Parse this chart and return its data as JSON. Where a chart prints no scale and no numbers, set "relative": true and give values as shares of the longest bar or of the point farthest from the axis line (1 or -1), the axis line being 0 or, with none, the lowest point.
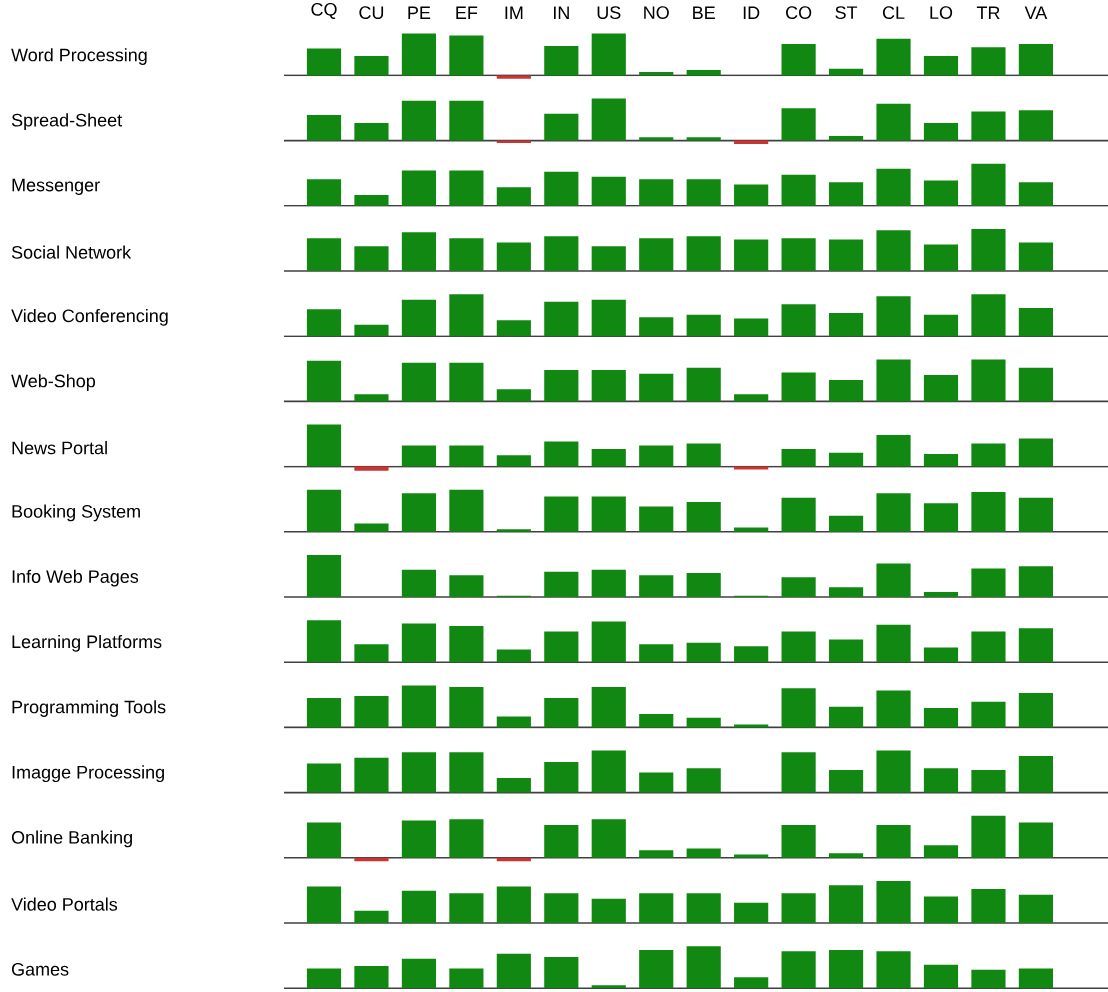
{
  "chart_data": [
    {
      "type": "bar",
      "ylabel": "Word Processing",
      "relative": true,
      "tick_labels": "x",
      "categories": [
        "CQ",
        "CU",
        "PE",
        "EF",
        "IM",
        "IN",
        "US",
        "NO",
        "BE",
        "ID",
        "CO",
        "ST",
        "CL",
        "LO",
        "TR",
        "VA"
      ],
      "values": [
        0.64,
        0.46,
        1,
        0.95,
        -0.08,
        0.7,
        1,
        0.08,
        0.13,
        0,
        0.75,
        0.16,
        0.87,
        0.46,
        0.67,
        0.75
      ],
      "colors": [
        "#118811",
        "#118811",
        "#118811",
        "#118811",
        "#cc3333",
        "#118811",
        "#118811",
        "#118811",
        "#118811",
        "#118811",
        "#118811",
        "#118811",
        "#118811",
        "#118811",
        "#118811",
        "#118811"
      ]
    },
    {
      "type": "bar",
      "ylabel": "Spread-Sheet",
      "relative": true,
      "tick_labels": false,
      "categories": [
        null,
        null,
        null,
        null,
        null,
        null,
        null,
        null,
        null,
        null,
        null,
        null,
        null,
        null,
        null,
        null
      ],
      "values": [
        0.61,
        0.42,
        0.95,
        0.95,
        -0.06,
        0.64,
        1,
        0.08,
        0.08,
        -0.08,
        0.77,
        0.11,
        0.88,
        0.42,
        0.69,
        0.72
      ],
      "colors": [
        "#118811",
        "#118811",
        "#118811",
        "#118811",
        "#cc3333",
        "#118811",
        "#118811",
        "#118811",
        "#118811",
        "#cc3333",
        "#118811",
        "#118811",
        "#118811",
        "#118811",
        "#118811",
        "#118811"
      ]
    },
    {
      "type": "bar",
      "ylabel": "Messenger",
      "relative": true,
      "tick_labels": false,
      "categories": [
        null,
        null,
        null,
        null,
        null,
        null,
        null,
        null,
        null,
        null,
        null,
        null,
        null,
        null,
        null,
        null
      ],
      "values": [
        0.63,
        0.26,
        0.84,
        0.84,
        0.44,
        0.81,
        0.69,
        0.63,
        0.63,
        0.51,
        0.74,
        0.56,
        0.88,
        0.6,
        1,
        0.56
      ],
      "colors": [
        "#118811",
        "#118811",
        "#118811",
        "#118811",
        "#118811",
        "#118811",
        "#118811",
        "#118811",
        "#118811",
        "#118811",
        "#118811",
        "#118811",
        "#118811",
        "#118811",
        "#118811",
        "#118811"
      ]
    },
    {
      "type": "bar",
      "ylabel": "Social Network",
      "relative": true,
      "tick_labels": false,
      "categories": [
        null,
        null,
        null,
        null,
        null,
        null,
        null,
        null,
        null,
        null,
        null,
        null,
        null,
        null,
        null,
        null
      ],
      "values": [
        0.78,
        0.59,
        0.92,
        0.78,
        0.68,
        0.83,
        0.59,
        0.78,
        0.83,
        0.75,
        0.78,
        0.75,
        0.97,
        0.63,
        1,
        0.68
      ],
      "colors": [
        "#118811",
        "#118811",
        "#118811",
        "#118811",
        "#118811",
        "#118811",
        "#118811",
        "#118811",
        "#118811",
        "#118811",
        "#118811",
        "#118811",
        "#118811",
        "#118811",
        "#118811",
        "#118811"
      ]
    },
    {
      "type": "bar",
      "ylabel": "Video Conferencing",
      "relative": true,
      "tick_labels": false,
      "categories": [
        null,
        null,
        null,
        null,
        null,
        null,
        null,
        null,
        null,
        null,
        null,
        null,
        null,
        null,
        null,
        null
      ],
      "values": [
        0.64,
        0.27,
        0.87,
        1,
        0.38,
        0.82,
        0.87,
        0.45,
        0.51,
        0.42,
        0.76,
        0.55,
        0.95,
        0.51,
        1,
        0.67
      ],
      "colors": [
        "#118811",
        "#118811",
        "#118811",
        "#118811",
        "#118811",
        "#118811",
        "#118811",
        "#118811",
        "#118811",
        "#118811",
        "#118811",
        "#118811",
        "#118811",
        "#118811",
        "#118811",
        "#118811"
      ]
    },
    {
      "type": "bar",
      "ylabel": "Web-Shop",
      "relative": true,
      "tick_labels": false,
      "categories": [
        null,
        null,
        null,
        null,
        null,
        null,
        null,
        null,
        null,
        null,
        null,
        null,
        null,
        null,
        null,
        null
      ],
      "values": [
        0.97,
        0.17,
        0.92,
        0.92,
        0.29,
        0.75,
        0.75,
        0.66,
        0.8,
        0.17,
        0.69,
        0.51,
        1,
        0.63,
        1,
        0.8
      ],
      "colors": [
        "#118811",
        "#118811",
        "#118811",
        "#118811",
        "#118811",
        "#118811",
        "#118811",
        "#118811",
        "#118811",
        "#118811",
        "#118811",
        "#118811",
        "#118811",
        "#118811",
        "#118811",
        "#118811"
      ]
    },
    {
      "type": "bar",
      "ylabel": "News Portal",
      "relative": true,
      "tick_labels": false,
      "categories": [
        null,
        null,
        null,
        null,
        null,
        null,
        null,
        null,
        null,
        null,
        null,
        null,
        null,
        null,
        null,
        null
      ],
      "values": [
        1,
        -0.1,
        0.5,
        0.5,
        0.27,
        0.6,
        0.42,
        0.5,
        0.55,
        -0.07,
        0.42,
        0.33,
        0.75,
        0.3,
        0.55,
        0.67
      ],
      "colors": [
        "#118811",
        "#cc3333",
        "#118811",
        "#118811",
        "#118811",
        "#118811",
        "#118811",
        "#118811",
        "#118811",
        "#cc3333",
        "#118811",
        "#118811",
        "#118811",
        "#118811",
        "#118811",
        "#118811"
      ]
    },
    {
      "type": "bar",
      "ylabel": "Booking System",
      "relative": true,
      "tick_labels": false,
      "categories": [
        null,
        null,
        null,
        null,
        null,
        null,
        null,
        null,
        null,
        null,
        null,
        null,
        null,
        null,
        null,
        null
      ],
      "values": [
        1,
        0.2,
        0.92,
        1,
        0.06,
        0.84,
        0.84,
        0.6,
        0.71,
        0.1,
        0.81,
        0.38,
        0.92,
        0.68,
        0.95,
        0.81
      ],
      "colors": [
        "#118811",
        "#118811",
        "#118811",
        "#118811",
        "#118811",
        "#118811",
        "#118811",
        "#118811",
        "#118811",
        "#118811",
        "#118811",
        "#118811",
        "#118811",
        "#118811",
        "#118811",
        "#118811"
      ]
    },
    {
      "type": "bar",
      "ylabel": "Info Web Pages",
      "relative": true,
      "tick_labels": false,
      "categories": [
        null,
        null,
        null,
        null,
        null,
        null,
        null,
        null,
        null,
        null,
        null,
        null,
        null,
        null,
        null,
        null
      ],
      "values": [
        1,
        0,
        0.65,
        0.52,
        0.03,
        0.6,
        0.65,
        0.52,
        0.57,
        0.03,
        0.47,
        0.23,
        0.8,
        0.12,
        0.68,
        0.73
      ],
      "colors": [
        "#118811",
        "#118811",
        "#118811",
        "#118811",
        "#118811",
        "#118811",
        "#118811",
        "#118811",
        "#118811",
        "#118811",
        "#118811",
        "#118811",
        "#118811",
        "#118811",
        "#118811",
        "#118811"
      ]
    },
    {
      "type": "bar",
      "ylabel": "Learning Platforms",
      "relative": true,
      "tick_labels": false,
      "categories": [
        null,
        null,
        null,
        null,
        null,
        null,
        null,
        null,
        null,
        null,
        null,
        null,
        null,
        null,
        null,
        null
      ],
      "values": [
        1,
        0.43,
        0.92,
        0.86,
        0.3,
        0.73,
        0.97,
        0.43,
        0.46,
        0.38,
        0.73,
        0.54,
        0.89,
        0.35,
        0.73,
        0.81
      ],
      "colors": [
        "#118811",
        "#118811",
        "#118811",
        "#118811",
        "#118811",
        "#118811",
        "#118811",
        "#118811",
        "#118811",
        "#118811",
        "#118811",
        "#118811",
        "#118811",
        "#118811",
        "#118811",
        "#118811"
      ]
    },
    {
      "type": "bar",
      "ylabel": "Programming Tools",
      "relative": true,
      "tick_labels": false,
      "categories": [
        null,
        null,
        null,
        null,
        null,
        null,
        null,
        null,
        null,
        null,
        null,
        null,
        null,
        null,
        null,
        null
      ],
      "values": [
        0.7,
        0.75,
        1,
        0.96,
        0.26,
        0.7,
        0.96,
        0.32,
        0.23,
        0.07,
        0.93,
        0.49,
        0.88,
        0.46,
        0.61,
        0.82
      ],
      "colors": [
        "#118811",
        "#118811",
        "#118811",
        "#118811",
        "#118811",
        "#118811",
        "#118811",
        "#118811",
        "#118811",
        "#118811",
        "#118811",
        "#118811",
        "#118811",
        "#118811",
        "#118811",
        "#118811"
      ]
    },
    {
      "type": "bar",
      "ylabel": "Imagge Processing",
      "relative": true,
      "tick_labels": false,
      "categories": [
        null,
        null,
        null,
        null,
        null,
        null,
        null,
        null,
        null,
        null,
        null,
        null,
        null,
        null,
        null,
        null
      ],
      "values": [
        0.69,
        0.83,
        0.96,
        0.96,
        0.35,
        0.73,
        1,
        0.48,
        0.58,
        0,
        0.96,
        0.54,
        1,
        0.58,
        0.54,
        0.87
      ],
      "colors": [
        "#118811",
        "#118811",
        "#118811",
        "#118811",
        "#118811",
        "#118811",
        "#118811",
        "#118811",
        "#118811",
        "#118811",
        "#118811",
        "#118811",
        "#118811",
        "#118811",
        "#118811",
        "#118811"
      ]
    },
    {
      "type": "bar",
      "ylabel": "Online Banking",
      "relative": true,
      "tick_labels": false,
      "categories": [
        null,
        null,
        null,
        null,
        null,
        null,
        null,
        null,
        null,
        null,
        null,
        null,
        null,
        null,
        null,
        null
      ],
      "values": [
        0.84,
        -0.08,
        0.89,
        0.92,
        -0.08,
        0.78,
        0.92,
        0.18,
        0.22,
        0.08,
        0.78,
        0.11,
        0.78,
        0.3,
        1,
        0.84
      ],
      "colors": [
        "#118811",
        "#cc3333",
        "#118811",
        "#118811",
        "#cc3333",
        "#118811",
        "#118811",
        "#118811",
        "#118811",
        "#118811",
        "#118811",
        "#118811",
        "#118811",
        "#118811",
        "#118811",
        "#118811"
      ]
    },
    {
      "type": "bar",
      "ylabel": "Video Portals",
      "relative": true,
      "tick_labels": false,
      "categories": [
        null,
        null,
        null,
        null,
        null,
        null,
        null,
        null,
        null,
        null,
        null,
        null,
        null,
        null,
        null,
        null
      ],
      "values": [
        0.87,
        0.29,
        0.77,
        0.71,
        0.87,
        0.71,
        0.58,
        0.71,
        0.71,
        0.48,
        0.71,
        0.9,
        1,
        0.63,
        0.81,
        0.67
      ],
      "colors": [
        "#118811",
        "#118811",
        "#118811",
        "#118811",
        "#118811",
        "#118811",
        "#118811",
        "#118811",
        "#118811",
        "#118811",
        "#118811",
        "#118811",
        "#118811",
        "#118811",
        "#118811",
        "#118811"
      ]
    },
    {
      "type": "bar",
      "ylabel": "Games",
      "relative": true,
      "tick_labels": false,
      "categories": [
        null,
        null,
        null,
        null,
        null,
        null,
        null,
        null,
        null,
        null,
        null,
        null,
        null,
        null,
        null,
        null
      ],
      "values": [
        0.47,
        0.53,
        0.7,
        0.47,
        0.82,
        0.74,
        0.07,
        0.91,
        1,
        0.26,
        0.88,
        0.91,
        0.88,
        0.56,
        0.44,
        0.47
      ],
      "colors": [
        "#118811",
        "#118811",
        "#118811",
        "#118811",
        "#118811",
        "#118811",
        "#118811",
        "#118811",
        "#118811",
        "#118811",
        "#118811",
        "#118811",
        "#118811",
        "#118811",
        "#118811",
        "#118811"
      ]
    }
  ]
}
